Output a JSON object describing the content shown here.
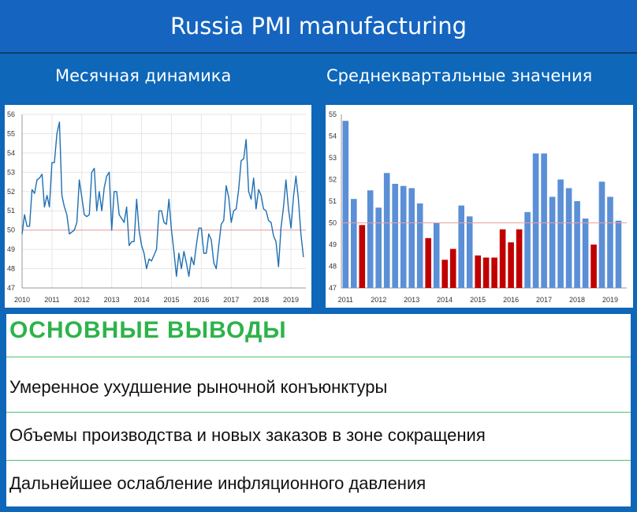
{
  "header": {
    "title": "Russia PMI manufacturing"
  },
  "subtitles": {
    "left": "Месячная динамика",
    "right": "Среднеквартальные значения"
  },
  "conclusions": {
    "title": "ОСНОВНЫЕ ВЫВОДЫ",
    "items": [
      "Умеренное ухудшение рыночной конъюнктуры",
      "Объемы производства и новых заказов в зоне сокращения",
      "Дальнейшее ослабление инфляционного давления"
    ]
  },
  "colors": {
    "line": "#1f6fb2",
    "bar_above": "#5b8fd6",
    "bar_below": "#c00000",
    "ref_line": "#e8a0a0"
  },
  "chart_data": [
    {
      "type": "line",
      "title": "Месячная динамика",
      "ylim": [
        47,
        56
      ],
      "yticks": [
        47,
        48,
        49,
        50,
        51,
        52,
        53,
        54,
        55,
        56
      ],
      "xlim": [
        2010,
        2019.5
      ],
      "xticks": [
        "2010",
        "2011",
        "2012",
        "2013",
        "2014",
        "2015",
        "2016",
        "2017",
        "2018",
        "2019"
      ],
      "reference_line": 50,
      "x": [
        2010.0,
        2010.083,
        2010.167,
        2010.25,
        2010.333,
        2010.417,
        2010.5,
        2010.583,
        2010.667,
        2010.75,
        2010.833,
        2010.917,
        2011.0,
        2011.083,
        2011.167,
        2011.25,
        2011.333,
        2011.417,
        2011.5,
        2011.583,
        2011.667,
        2011.75,
        2011.833,
        2011.917,
        2012.0,
        2012.083,
        2012.167,
        2012.25,
        2012.333,
        2012.417,
        2012.5,
        2012.583,
        2012.667,
        2012.75,
        2012.833,
        2012.917,
        2013.0,
        2013.083,
        2013.167,
        2013.25,
        2013.333,
        2013.417,
        2013.5,
        2013.583,
        2013.667,
        2013.75,
        2013.833,
        2013.917,
        2014.0,
        2014.083,
        2014.167,
        2014.25,
        2014.333,
        2014.417,
        2014.5,
        2014.583,
        2014.667,
        2014.75,
        2014.833,
        2014.917,
        2015.0,
        2015.083,
        2015.167,
        2015.25,
        2015.333,
        2015.417,
        2015.5,
        2015.583,
        2015.667,
        2015.75,
        2015.833,
        2015.917,
        2016.0,
        2016.083,
        2016.167,
        2016.25,
        2016.333,
        2016.417,
        2016.5,
        2016.583,
        2016.667,
        2016.75,
        2016.833,
        2016.917,
        2017.0,
        2017.083,
        2017.167,
        2017.25,
        2017.333,
        2017.417,
        2017.5,
        2017.583,
        2017.667,
        2017.75,
        2017.833,
        2017.917,
        2018.0,
        2018.083,
        2018.167,
        2018.25,
        2018.333,
        2018.417,
        2018.5,
        2018.583,
        2018.667,
        2018.75,
        2018.833,
        2018.917,
        2019.0,
        2019.083,
        2019.167,
        2019.25,
        2019.333,
        2019.417
      ],
      "values": [
        49.8,
        50.8,
        50.2,
        50.2,
        52.1,
        51.9,
        52.6,
        52.7,
        52.9,
        51.2,
        51.8,
        51.2,
        53.5,
        53.5,
        55.0,
        55.6,
        51.8,
        51.2,
        50.8,
        49.8,
        49.9,
        50.0,
        50.4,
        52.6,
        51.7,
        50.8,
        50.7,
        50.8,
        53.0,
        53.2,
        51.0,
        52.0,
        51.0,
        52.2,
        52.8,
        53.0,
        50.0,
        52.0,
        52.0,
        50.8,
        50.6,
        50.4,
        51.2,
        49.2,
        49.4,
        49.4,
        51.6,
        50.0,
        49.2,
        48.8,
        48.0,
        48.5,
        48.4,
        48.7,
        49.0,
        51.0,
        51.0,
        50.4,
        50.3,
        51.6,
        50.0,
        48.9,
        47.6,
        48.8,
        48.0,
        48.9,
        48.3,
        47.6,
        48.6,
        48.2,
        49.2,
        50.1,
        50.1,
        48.8,
        48.8,
        49.8,
        49.5,
        48.3,
        48.0,
        49.2,
        50.3,
        50.5,
        52.3,
        51.7,
        50.4,
        51.0,
        51.1,
        52.1,
        53.6,
        53.7,
        54.7,
        52.0,
        51.6,
        52.7,
        51.1,
        52.1,
        51.8,
        51.1,
        51.0,
        50.5,
        50.4,
        49.7,
        49.4,
        48.1,
        50.1,
        51.2,
        52.6,
        51.1,
        50.1,
        51.7,
        52.8,
        51.6,
        49.8,
        48.6
      ]
    },
    {
      "type": "bar",
      "title": "Среднеквартальные значения",
      "ylim": [
        47,
        55
      ],
      "yticks": [
        47,
        48,
        49,
        50,
        51,
        52,
        53,
        54,
        55
      ],
      "xlim": [
        2010.875,
        2019.5
      ],
      "xticks": [
        "2011",
        "2012",
        "2013",
        "2014",
        "2015",
        "2016",
        "2017",
        "2018",
        "2019"
      ],
      "reference_line": 50,
      "categories": [
        "2011 Q1",
        "2011 Q2",
        "2011 Q3",
        "2011 Q4",
        "2012 Q1",
        "2012 Q2",
        "2012 Q3",
        "2012 Q4",
        "2013 Q1",
        "2013 Q2",
        "2013 Q3",
        "2013 Q4",
        "2014 Q1",
        "2014 Q2",
        "2014 Q3",
        "2014 Q4",
        "2015 Q1",
        "2015 Q2",
        "2015 Q3",
        "2015 Q4",
        "2016 Q1",
        "2016 Q2",
        "2016 Q3",
        "2016 Q4",
        "2017 Q1",
        "2017 Q2",
        "2017 Q3",
        "2017 Q4",
        "2018 Q1",
        "2018 Q2",
        "2018 Q3",
        "2018 Q4",
        "2019 Q1",
        "2019 Q2"
      ],
      "values": [
        54.7,
        51.1,
        49.9,
        51.5,
        50.7,
        52.3,
        51.8,
        51.7,
        51.6,
        50.9,
        49.3,
        50.0,
        48.3,
        48.8,
        50.8,
        50.3,
        48.5,
        48.4,
        48.4,
        49.7,
        49.1,
        49.7,
        50.5,
        53.2,
        53.2,
        51.2,
        52.0,
        51.6,
        51.0,
        50.2,
        49.0,
        51.9,
        51.2,
        50.1
      ]
    }
  ]
}
